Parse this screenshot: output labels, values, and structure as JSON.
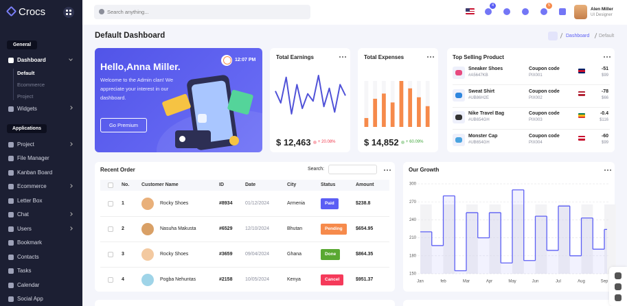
{
  "sidebar": {
    "logo": "Crocs",
    "general": "General",
    "dashboard": "Dashboard",
    "dashboard_sub": [
      "Default",
      "Ecommerce",
      "Project"
    ],
    "widgets": "Widgets",
    "applications": "Applications",
    "apps": [
      "Project",
      "File Manager",
      "Kanban Board",
      "Ecommerce",
      "Letter Box",
      "Chat",
      "Users",
      "Bookmark",
      "Contacts",
      "Tasks",
      "Calendar",
      "Social App"
    ]
  },
  "topbar": {
    "search_placeholder": "Search anything...",
    "badges": [
      4,
      5
    ],
    "user_name": "Alen Miller",
    "user_role": "UI Designer"
  },
  "page_title": "Default Dashboard",
  "breadcrumb": [
    "Dashboard",
    "Default"
  ],
  "welcome": {
    "greeting": "Hello,Anna Miller.",
    "message": "Welcome to the Admin clan! We appreciate your interest in our dashboard.",
    "time": "12:07 PM",
    "button": "Go Premium"
  },
  "earnings": {
    "amount": "$ 12,463",
    "change": "+ 20.08%"
  },
  "expenses": {
    "amount": "$ 14,852",
    "change": "+ 60.09%"
  },
  "top_products": {
    "title": "Top Selling Product",
    "coupon_label": "Coupon code",
    "rows": [
      {
        "name": "Sneaker Shoes",
        "sku": "#A5647KB",
        "coupon": "PIX001",
        "change": -51,
        "price": "$99"
      },
      {
        "name": "Sweat Shirt",
        "sku": "#UB86H2E",
        "coupon": "PIX002",
        "change": -78,
        "price": "$66"
      },
      {
        "name": "Nike Travel Bag",
        "sku": "#UB654GH",
        "coupon": "PIX003",
        "change": -0.4,
        "price": "$116"
      },
      {
        "name": "Monster Cap",
        "sku": "#UB654GH",
        "coupon": "PIX004",
        "change": -60,
        "price": "$99"
      }
    ]
  },
  "recent_orders": {
    "title": "Recent Order",
    "search_label": "Search:",
    "columns": [
      "No.",
      "Customer Name",
      "ID",
      "Date",
      "City",
      "Status",
      "Amount"
    ],
    "rows": [
      [
        1,
        "Rocky Shoes",
        "#8934",
        "01/12/2024",
        "Armenia",
        "Paid",
        "$238.8"
      ],
      [
        2,
        "Nasuha Makusta",
        "#6529",
        "12/10/2024",
        "Bhutan",
        "Pending",
        "$654.95"
      ],
      [
        3,
        "Rocky Shoes",
        "#3659",
        "09/04/2024",
        "Ghana",
        "Done",
        "$864.35"
      ],
      [
        4,
        "Pogba Nehuntas",
        "#2158",
        "10/05/2024",
        "Kenya",
        "Cancel",
        "$951.37"
      ]
    ]
  },
  "chart_data": [
    {
      "type": "line",
      "title": "Total Earnings",
      "values": [
        55,
        42,
        70,
        30,
        62,
        36,
        52,
        44,
        72,
        38,
        58,
        32,
        62,
        50
      ],
      "color": "#5052d8"
    },
    {
      "type": "bar",
      "title": "Total Expenses",
      "values": [
        12,
        38,
        45,
        33,
        62,
        52,
        40,
        28
      ],
      "color": "#f68a4b"
    },
    {
      "type": "step",
      "title": "Our Growth",
      "categories": [
        "Jan",
        null,
        "feb",
        null,
        "Mar",
        null,
        "Apr",
        null,
        "May",
        null,
        "Jun",
        null,
        "Jul",
        null,
        "Aug",
        null,
        "Sep"
      ],
      "values": [
        220,
        197,
        280,
        155,
        252,
        210,
        252,
        168,
        290,
        172,
        246,
        189,
        263,
        180,
        243,
        191,
        224
      ],
      "color": "#5b5ef4",
      "ylim": [
        150,
        300
      ],
      "yticks": [
        150,
        180,
        210,
        240,
        270,
        300
      ],
      "grid": true
    }
  ]
}
